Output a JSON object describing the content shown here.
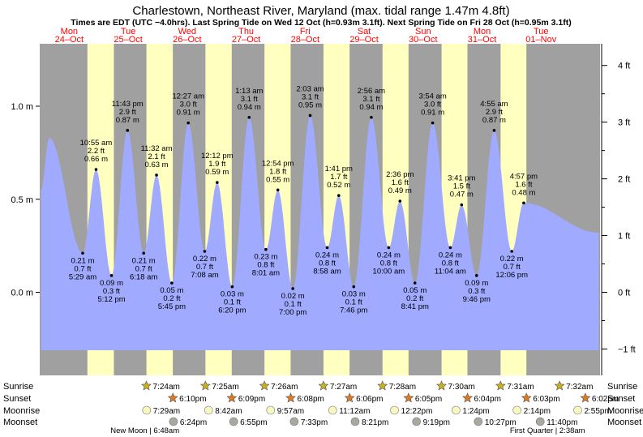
{
  "chart_data": {
    "type": "area",
    "title": "Charlestown, Northeast River, Maryland (max. tidal range 1.47m 4.8ft)",
    "subtitle": "Times are EDT (UTC −4.0hrs). Last Spring Tide on Wed 12 Oct (h=0.93m 3.1ft). Next Spring Tide on Fri 28 Oct (h=0.95m 3.1ft)",
    "days": [
      {
        "dow": "Mon",
        "date": "24–Oct"
      },
      {
        "dow": "Tue",
        "date": "25–Oct"
      },
      {
        "dow": "Wed",
        "date": "26–Oct"
      },
      {
        "dow": "Thu",
        "date": "27–Oct"
      },
      {
        "dow": "Fri",
        "date": "28–Oct"
      },
      {
        "dow": "Sat",
        "date": "29–Oct"
      },
      {
        "dow": "Sun",
        "date": "30–Oct"
      },
      {
        "dow": "Mon",
        "date": "31–Oct"
      },
      {
        "dow": "Tue",
        "date": "01–Nov"
      }
    ],
    "yaxis_left": {
      "ticks": [
        "1.0 m",
        "0.5 m",
        "0.0 m"
      ],
      "values": [
        1.0,
        0.5,
        0.0
      ]
    },
    "yaxis_right": {
      "ticks": [
        "4 ft",
        "3 ft",
        "2 ft",
        "1 ft",
        "0 ft",
        "−1 ft"
      ],
      "values": [
        4,
        3,
        2,
        1,
        0,
        -1
      ]
    },
    "ylim_m": [
      -0.33,
      1.37
    ],
    "xlim_hours": [
      -12,
      216
    ],
    "daylight": [
      {
        "sunrise_h": 7.4,
        "sunset_h": 18.17
      },
      {
        "sunrise_h": 31.42,
        "sunset_h": 42.15
      },
      {
        "sunrise_h": 55.43,
        "sunset_h": 66.13
      },
      {
        "sunrise_h": 79.45,
        "sunset_h": 90.1
      },
      {
        "sunrise_h": 103.47,
        "sunset_h": 114.08
      },
      {
        "sunrise_h": 127.5,
        "sunset_h": 138.07
      },
      {
        "sunrise_h": 151.52,
        "sunset_h": 162.05
      },
      {
        "sunrise_h": 175.53,
        "sunset_h": 186.03
      }
    ],
    "curve_start": {
      "h": -11.5,
      "m": 0.55
    },
    "curve_end": {
      "h": 215.5,
      "m": 0.32
    },
    "tides": [
      {
        "h": -8.1,
        "m": 0.83
      },
      {
        "h": 5.48,
        "m": 0.21,
        "time": "5:29 am",
        "ft": "0.7 ft",
        "m_label": "0.21 m",
        "type": "low"
      },
      {
        "h": 10.92,
        "m": 0.66,
        "time": "10:55 am",
        "ft": "2.2 ft",
        "m_label": "0.66 m",
        "type": "high"
      },
      {
        "h": 17.2,
        "m": 0.09,
        "time": "5:12 pm",
        "ft": "0.3 ft",
        "m_label": "0.09 m",
        "type": "low"
      },
      {
        "h": 23.72,
        "m": 0.87,
        "time": "11:43 pm",
        "ft": "2.9 ft",
        "m_label": "0.87 m",
        "type": "high"
      },
      {
        "h": 30.3,
        "m": 0.21,
        "time": "6:18 am",
        "ft": "0.7 ft",
        "m_label": "0.21 m",
        "type": "low"
      },
      {
        "h": 35.53,
        "m": 0.63,
        "time": "11:32 am",
        "ft": "2.1 ft",
        "m_label": "0.63 m",
        "type": "high"
      },
      {
        "h": 41.75,
        "m": 0.05,
        "time": "5:45 pm",
        "ft": "0.2 ft",
        "m_label": "0.05 m",
        "type": "low"
      },
      {
        "h": 48.45,
        "m": 0.91,
        "time": "12:27 am",
        "ft": "3.0 ft",
        "m_label": "0.91 m",
        "type": "high"
      },
      {
        "h": 55.13,
        "m": 0.22,
        "time": "7:08 am",
        "ft": "0.7 ft",
        "m_label": "0.22 m",
        "type": "low"
      },
      {
        "h": 60.2,
        "m": 0.59,
        "time": "12:12 pm",
        "ft": "1.9 ft",
        "m_label": "0.59 m",
        "type": "high"
      },
      {
        "h": 66.33,
        "m": 0.03,
        "time": "6:20 pm",
        "ft": "0.1 ft",
        "m_label": "0.03 m",
        "type": "low"
      },
      {
        "h": 73.22,
        "m": 0.94,
        "time": "1:13 am",
        "ft": "3.1 ft",
        "m_label": "0.94 m",
        "type": "high"
      },
      {
        "h": 80.02,
        "m": 0.23,
        "time": "8:01 am",
        "ft": "0.8 ft",
        "m_label": "0.23 m",
        "type": "low"
      },
      {
        "h": 84.9,
        "m": 0.55,
        "time": "12:54 pm",
        "ft": "1.8 ft",
        "m_label": "0.55 m",
        "type": "high"
      },
      {
        "h": 91.0,
        "m": 0.02,
        "time": "7:00 pm",
        "ft": "0.1 ft",
        "m_label": "0.02 m",
        "type": "low"
      },
      {
        "h": 98.05,
        "m": 0.95,
        "time": "2:03 am",
        "ft": "3.1 ft",
        "m_label": "0.95 m",
        "type": "high"
      },
      {
        "h": 104.97,
        "m": 0.24,
        "time": "8:58 am",
        "ft": "0.8 ft",
        "m_label": "0.24 m",
        "type": "low"
      },
      {
        "h": 109.68,
        "m": 0.52,
        "time": "1:41 pm",
        "ft": "1.7 ft",
        "m_label": "0.52 m",
        "type": "high"
      },
      {
        "h": 115.77,
        "m": 0.03,
        "time": "7:46 pm",
        "ft": "0.1 ft",
        "m_label": "0.03 m",
        "type": "low"
      },
      {
        "h": 122.93,
        "m": 0.94,
        "time": "2:56 am",
        "ft": "3.1 ft",
        "m_label": "0.94 m",
        "type": "high"
      },
      {
        "h": 130.0,
        "m": 0.24,
        "time": "10:00 am",
        "ft": "0.8 ft",
        "m_label": "0.24 m",
        "type": "low"
      },
      {
        "h": 134.6,
        "m": 0.49,
        "time": "2:36 pm",
        "ft": "1.6 ft",
        "m_label": "0.49 m",
        "type": "high"
      },
      {
        "h": 140.68,
        "m": 0.05,
        "time": "8:41 pm",
        "ft": "0.2 ft",
        "m_label": "0.05 m",
        "type": "low"
      },
      {
        "h": 147.9,
        "m": 0.91,
        "time": "3:54 am",
        "ft": "3.0 ft",
        "m_label": "0.91 m",
        "type": "high"
      },
      {
        "h": 155.07,
        "m": 0.24,
        "time": "11:04 am",
        "ft": "0.8 ft",
        "m_label": "0.24 m",
        "type": "low"
      },
      {
        "h": 159.68,
        "m": 0.47,
        "time": "3:41 pm",
        "ft": "1.5 ft",
        "m_label": "0.47 m",
        "type": "high"
      },
      {
        "h": 165.77,
        "m": 0.09,
        "time": "9:46 pm",
        "ft": "0.3 ft",
        "m_label": "0.09 m",
        "type": "low"
      },
      {
        "h": 172.92,
        "m": 0.87,
        "time": "4:55 am",
        "ft": "2.9 ft",
        "m_label": "0.87 m",
        "type": "high"
      },
      {
        "h": 180.1,
        "m": 0.22,
        "time": "12:06 pm",
        "ft": "0.7 ft",
        "m_label": "0.22 m",
        "type": "low"
      },
      {
        "h": 184.95,
        "m": 0.48,
        "time": "4:57 pm",
        "ft": "1.6 ft",
        "m_label": "0.48 m",
        "type": "high"
      }
    ],
    "rows": [
      {
        "label": "Sunrise",
        "icon": "sunrise-icon",
        "items": [
          {
            "h": 31.4,
            "t": "7:24am"
          },
          {
            "h": 55.42,
            "t": "7:25am"
          },
          {
            "h": 79.43,
            "t": "7:26am"
          },
          {
            "h": 103.45,
            "t": "7:27am"
          },
          {
            "h": 127.47,
            "t": "7:28am"
          },
          {
            "h": 151.5,
            "t": "7:30am"
          },
          {
            "h": 175.52,
            "t": "7:31am"
          },
          {
            "h": 199.53,
            "t": "7:32am"
          }
        ]
      },
      {
        "label": "Sunset",
        "icon": "sunset-icon",
        "items": [
          {
            "h": 42.17,
            "t": "6:10pm"
          },
          {
            "h": 66.15,
            "t": "6:09pm"
          },
          {
            "h": 90.13,
            "t": "6:08pm"
          },
          {
            "h": 114.1,
            "t": "6:06pm"
          },
          {
            "h": 138.08,
            "t": "6:05pm"
          },
          {
            "h": 162.07,
            "t": "6:04pm"
          },
          {
            "h": 186.05,
            "t": "6:03pm"
          },
          {
            "h": 210.03,
            "t": "6:02pm"
          }
        ]
      },
      {
        "label": "Moonrise",
        "icon": "moonrise-icon",
        "items": [
          {
            "h": 31.48,
            "t": "7:29am"
          },
          {
            "h": 56.7,
            "t": "8:42am"
          },
          {
            "h": 81.95,
            "t": "9:57am"
          },
          {
            "h": 107.2,
            "t": "11:12am"
          },
          {
            "h": 132.37,
            "t": "12:22pm"
          },
          {
            "h": 157.4,
            "t": "1:24pm"
          },
          {
            "h": 182.23,
            "t": "2:14pm"
          },
          {
            "h": 206.92,
            "t": "2:55pm"
          }
        ]
      },
      {
        "label": "Moonset",
        "icon": "moonset-icon",
        "items": [
          {
            "h": 42.4,
            "t": "6:24pm"
          },
          {
            "h": 66.92,
            "t": "6:55pm"
          },
          {
            "h": 91.55,
            "t": "7:33pm"
          },
          {
            "h": 116.35,
            "t": "8:21pm"
          },
          {
            "h": 141.32,
            "t": "9:19pm"
          },
          {
            "h": 166.45,
            "t": "10:27pm"
          },
          {
            "h": 191.67,
            "t": "11:40pm"
          }
        ]
      }
    ],
    "phases": [
      {
        "text": "New Moon | 6:48am",
        "h": 30.8
      },
      {
        "text": "First Quarter | 2:38am",
        "h": 194.63
      }
    ],
    "colors": {
      "night": "#a0a0a0",
      "day": "#ffffc0",
      "water": "#a0aaff",
      "title": "#000000",
      "day_label": "#ff0000",
      "sunrise_icon": "#c8b020",
      "sunset_icon": "#e07a20",
      "moonrise_icon": "#f8f8c0",
      "moonset_icon": "#a8a8a0"
    }
  }
}
